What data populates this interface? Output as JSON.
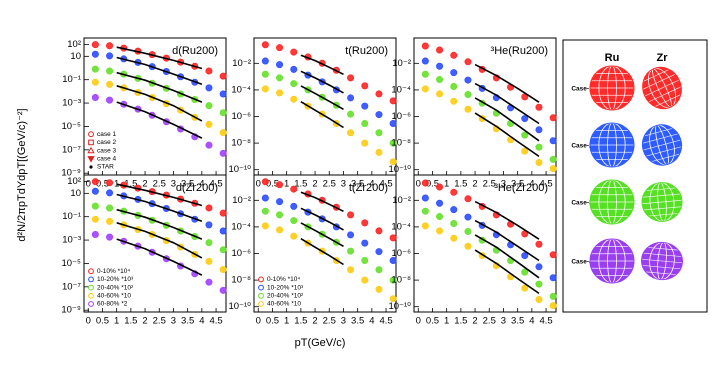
{
  "axes": {
    "x_label": "pT(GeV/c)",
    "y_label": "d²N/2πpTdYdpT[(GeV/c)⁻²]"
  },
  "chart_data": [
    {
      "type": "scatter",
      "title": "d(Ru200)",
      "log_y": true,
      "xlim": [
        -0.15,
        4.85
      ],
      "xticks": [
        0,
        0.5,
        1,
        1.5,
        2,
        2.5,
        3,
        3.5,
        4,
        4.5
      ],
      "ylim": [
        7e-10,
        370
      ],
      "yticks": [
        {
          "value": 100,
          "label": "10²"
        },
        10,
        {
          "value": 0.1,
          "label": "10⁻¹"
        },
        {
          "value": 0.001,
          "label": "10⁻³"
        },
        {
          "value": 1e-05,
          "label": "10⁻⁵"
        },
        {
          "value": 1e-07,
          "label": "10⁻⁷"
        },
        {
          "value": 1e-09,
          "label": "10⁻⁹"
        }
      ],
      "marker_legend": [
        "case 1",
        "case 2",
        "case 3",
        "case 4",
        "STAR"
      ],
      "x": [
        0.25,
        0.75,
        1.25,
        1.75,
        2.25,
        2.75,
        3.25,
        3.75,
        4.25,
        4.75
      ],
      "series": [
        {
          "color": "#ff2222",
          "values": [
            100,
            80,
            50,
            28,
            14,
            7,
            3.2,
            1.4,
            0.56,
            0.2
          ]
        },
        {
          "color": "#2b4dff",
          "values": [
            15,
            11,
            6,
            3,
            1.3,
            0.5,
            0.18,
            0.06,
            0.02,
            0.006
          ]
        },
        {
          "color": "#66e02a",
          "values": [
            0.8,
            0.55,
            0.3,
            0.13,
            0.05,
            0.018,
            0.006,
            0.002,
            0.0006,
            0.00015
          ]
        },
        {
          "color": "#ffcc11",
          "values": [
            0.06,
            0.04,
            0.02,
            0.008,
            0.003,
            0.0009,
            0.00025,
            6e-05,
            1.5e-05,
            3e-06
          ]
        },
        {
          "color": "#a040ff",
          "values": [
            0.003,
            0.0018,
            0.0008,
            0.0003,
            9e-05,
            2.5e-05,
            6e-06,
            1.3e-06,
            2.5e-07,
            5e-08
          ]
        }
      ],
      "reference": [
        {
          "x": [
            1,
            2,
            3,
            4
          ],
          "values": [
            60,
            18,
            4.5,
            0.9
          ]
        },
        {
          "x": [
            1,
            2,
            3,
            4
          ],
          "values": [
            8,
            2,
            0.3,
            0.04
          ]
        },
        {
          "x": [
            1,
            2,
            3,
            4
          ],
          "values": [
            0.4,
            0.09,
            0.012,
            0.0012
          ]
        },
        {
          "x": [
            1,
            2,
            3,
            4
          ],
          "values": [
            0.03,
            0.0055,
            0.0006,
            3e-05
          ]
        },
        {
          "x": [
            1,
            2,
            3,
            4
          ],
          "values": [
            0.0012,
            0.00018,
            1.5e-05,
            1e-06
          ]
        }
      ]
    },
    {
      "type": "scatter",
      "title": "t(Ru200)",
      "log_y": true,
      "xlim": [
        -0.15,
        4.85
      ],
      "xticks": [
        0,
        0.5,
        1,
        1.5,
        2,
        2.5,
        3,
        3.5,
        4,
        4.5
      ],
      "ylim": [
        4e-11,
        0.8
      ],
      "yticks": [
        {
          "value": 0.01,
          "label": "10⁻²"
        },
        {
          "value": 0.0001,
          "label": "10⁻⁴"
        },
        {
          "value": 1e-06,
          "label": "10⁻⁶"
        },
        {
          "value": 1e-08,
          "label": "10⁻⁸"
        },
        {
          "value": 1e-10,
          "label": "10⁻¹⁰"
        }
      ],
      "x": [
        0.25,
        0.75,
        1.25,
        1.75,
        2.25,
        2.75,
        3.25,
        3.75,
        4.25,
        4.75
      ],
      "series": [
        {
          "color": "#ff2222",
          "values": [
            0.25,
            0.15,
            0.07,
            0.03,
            0.01,
            0.003,
            0.0008,
            0.0002,
            5e-05,
            1.5e-05
          ]
        },
        {
          "color": "#2b4dff",
          "values": [
            0.015,
            0.008,
            0.0035,
            0.0013,
            0.0004,
            0.0001,
            2.5e-05,
            6e-06,
            1.4e-06,
            3e-07
          ]
        },
        {
          "color": "#66e02a",
          "values": [
            0.0015,
            0.0008,
            0.0003,
            0.0001,
            2.8e-05,
            7e-06,
            1.5e-06,
            3e-07,
            6e-08,
            1e-08
          ]
        },
        {
          "color": "#ffcc11",
          "values": [
            0.00012,
            6e-05,
            2e-05,
            6e-06,
            1.5e-06,
            3e-07,
            6e-08,
            1e-08,
            2e-09,
            4e-10
          ]
        }
      ],
      "reference": [
        {
          "x": [
            1.5,
            2,
            2.5,
            3
          ],
          "values": [
            0.04,
            0.016,
            0.005,
            0.0015
          ]
        },
        {
          "x": [
            1.5,
            2,
            2.5,
            3
          ],
          "values": [
            0.0025,
            0.0008,
            0.00023,
            6e-05
          ]
        },
        {
          "x": [
            1.5,
            2,
            2.5,
            3
          ],
          "values": [
            0.0002,
            5.5e-05,
            1.4e-05,
            3.5e-06
          ]
        },
        {
          "x": [
            1.5,
            2,
            2.5,
            3
          ],
          "values": [
            1.3e-05,
            3e-06,
            7e-07,
            1.5e-07
          ]
        }
      ]
    },
    {
      "type": "scatter",
      "title": "³He(Ru200)",
      "log_y": true,
      "xlim": [
        -0.15,
        4.85
      ],
      "xticks": [
        0,
        0.5,
        1,
        1.5,
        2,
        2.5,
        3,
        3.5,
        4,
        4.5
      ],
      "ylim": [
        4e-11,
        0.8
      ],
      "yticks": [
        {
          "value": 0.01,
          "label": "10⁻²"
        },
        {
          "value": 0.0001,
          "label": "10⁻⁴"
        },
        {
          "value": 1e-06,
          "label": "10⁻⁶"
        },
        {
          "value": 1e-08,
          "label": "10⁻⁸"
        },
        {
          "value": 1e-10,
          "label": "10⁻¹⁰"
        }
      ],
      "x": [
        0.25,
        0.75,
        1.25,
        1.75,
        2.25,
        2.75,
        3.25,
        3.75,
        4.25,
        4.75
      ],
      "series": [
        {
          "color": "#ff2222",
          "values": [
            0.2,
            0.1,
            0.04,
            0.013,
            0.0035,
            0.0008,
            0.00016,
            3e-05,
            5e-06,
            8e-07
          ]
        },
        {
          "color": "#2b4dff",
          "values": [
            0.015,
            0.006,
            0.002,
            0.00055,
            0.00013,
            2.6e-05,
            4.5e-06,
            7e-07,
            1e-07,
            1.5e-08
          ]
        },
        {
          "color": "#66e02a",
          "values": [
            0.0015,
            0.0006,
            0.00018,
            4.5e-05,
            1e-05,
            1.8e-06,
            3e-07,
            4e-08,
            5e-09,
            6e-10
          ]
        },
        {
          "color": "#ffcc11",
          "values": [
            0.00012,
            5e-05,
            1.4e-05,
            3.5e-06,
            7e-07,
            1.2e-07,
            1.8e-08,
            2.5e-09,
            3.5e-10,
            1.2e-10
          ]
        }
      ],
      "reference": [
        {
          "x": [
            2,
            2.75,
            3.5,
            4.25
          ],
          "values": [
            0.008,
            0.0012,
            0.00013,
            1.2e-05
          ]
        },
        {
          "x": [
            2,
            2.75,
            3.5,
            4.25
          ],
          "values": [
            0.0003,
            4e-05,
            3.5e-06,
            3e-07
          ]
        },
        {
          "x": [
            2,
            2.75,
            3.5,
            4.25
          ],
          "values": [
            2.5e-05,
            3e-06,
            2.2e-07,
            1.5e-08
          ]
        },
        {
          "x": [
            2,
            2.75,
            3.5,
            4.25
          ],
          "values": [
            1.8e-06,
            1.8e-07,
            1.3e-08,
            1e-09
          ]
        }
      ]
    },
    {
      "type": "scatter",
      "title": "d(Zr200)",
      "log_y": true,
      "xlim": [
        -0.15,
        4.85
      ],
      "xticks": [
        0,
        0.5,
        1,
        1.5,
        2,
        2.5,
        3,
        3.5,
        4,
        4.5
      ],
      "ylim": [
        7e-10,
        370
      ],
      "yticks": [
        {
          "value": 100,
          "label": "10²"
        },
        10,
        {
          "value": 0.1,
          "label": "10⁻¹"
        },
        {
          "value": 0.001,
          "label": "10⁻³"
        },
        {
          "value": 1e-05,
          "label": "10⁻⁵"
        },
        {
          "value": 1e-07,
          "label": "10⁻⁷"
        },
        {
          "value": 1e-09,
          "label": "10⁻⁹"
        }
      ],
      "x": [
        0.25,
        0.75,
        1.25,
        1.75,
        2.25,
        2.75,
        3.25,
        3.75,
        4.25,
        4.75
      ],
      "series": [
        {
          "name": "0-10% *10⁴",
          "color": "#ff2222",
          "values": [
            100,
            80,
            50,
            28,
            14,
            7,
            3.2,
            1.4,
            0.56,
            0.2
          ]
        },
        {
          "name": "10-20% *10³",
          "color": "#2b4dff",
          "values": [
            15,
            11,
            6,
            3,
            1.3,
            0.5,
            0.18,
            0.06,
            0.02,
            0.006
          ]
        },
        {
          "name": "20-40% *10²",
          "color": "#66e02a",
          "values": [
            0.8,
            0.55,
            0.3,
            0.13,
            0.05,
            0.018,
            0.006,
            0.002,
            0.0006,
            0.00015
          ]
        },
        {
          "name": "40-60% *10",
          "color": "#ffcc11",
          "values": [
            0.06,
            0.04,
            0.02,
            0.008,
            0.003,
            0.0009,
            0.00025,
            6e-05,
            1.5e-05,
            3e-06
          ]
        },
        {
          "name": "60-80% *2",
          "color": "#a040ff",
          "values": [
            0.003,
            0.0018,
            0.0008,
            0.0003,
            9e-05,
            2.5e-05,
            6e-06,
            1.3e-06,
            2.5e-07,
            5e-08
          ]
        }
      ],
      "reference": [
        {
          "x": [
            1,
            2,
            3,
            4
          ],
          "values": [
            60,
            18,
            4.5,
            0.9
          ]
        },
        {
          "x": [
            1,
            2,
            3,
            4
          ],
          "values": [
            8,
            2,
            0.3,
            0.04
          ]
        },
        {
          "x": [
            1,
            2,
            3,
            4
          ],
          "values": [
            0.4,
            0.09,
            0.012,
            0.0012
          ]
        },
        {
          "x": [
            1,
            2,
            3,
            4
          ],
          "values": [
            0.03,
            0.0055,
            0.0006,
            3e-05
          ]
        },
        {
          "x": [
            1,
            2,
            3,
            4
          ],
          "values": [
            0.0012,
            0.00018,
            1.5e-05,
            1e-06
          ]
        }
      ]
    },
    {
      "type": "scatter",
      "title": "t(Zr200)",
      "log_y": true,
      "xlim": [
        -0.15,
        4.85
      ],
      "xticks": [
        0,
        0.5,
        1,
        1.5,
        2,
        2.5,
        3,
        3.5,
        4,
        4.5
      ],
      "ylim": [
        4e-11,
        0.8
      ],
      "yticks": [
        {
          "value": 0.01,
          "label": "10⁻²"
        },
        {
          "value": 0.0001,
          "label": "10⁻⁴"
        },
        {
          "value": 1e-06,
          "label": "10⁻⁶"
        },
        {
          "value": 1e-08,
          "label": "10⁻⁸"
        },
        {
          "value": 1e-10,
          "label": "10⁻¹⁰"
        }
      ],
      "x": [
        0.25,
        0.75,
        1.25,
        1.75,
        2.25,
        2.75,
        3.25,
        3.75,
        4.25,
        4.75
      ],
      "series": [
        {
          "name": "0-10% *10⁴",
          "color": "#ff2222",
          "values": [
            0.25,
            0.15,
            0.07,
            0.03,
            0.01,
            0.003,
            0.0008,
            0.0002,
            5e-05,
            1.5e-05
          ]
        },
        {
          "name": "10-20% *10³",
          "color": "#2b4dff",
          "values": [
            0.015,
            0.008,
            0.0035,
            0.0013,
            0.0004,
            0.0001,
            2.5e-05,
            6e-06,
            1.4e-06,
            3e-07
          ]
        },
        {
          "name": "20-40% *10²",
          "color": "#66e02a",
          "values": [
            0.0015,
            0.0008,
            0.0003,
            0.0001,
            2.8e-05,
            7e-06,
            1.5e-06,
            3e-07,
            6e-08,
            1e-08
          ]
        },
        {
          "name": "40-60% *10",
          "color": "#ffcc11",
          "values": [
            0.00012,
            6e-05,
            2e-05,
            6e-06,
            1.5e-06,
            3e-07,
            6e-08,
            1e-08,
            2e-09,
            4e-10
          ]
        }
      ],
      "reference": [
        {
          "x": [
            1.5,
            2,
            2.5,
            3
          ],
          "values": [
            0.04,
            0.016,
            0.005,
            0.0015
          ]
        },
        {
          "x": [
            1.5,
            2,
            2.5,
            3
          ],
          "values": [
            0.0025,
            0.0008,
            0.00023,
            6e-05
          ]
        },
        {
          "x": [
            1.5,
            2,
            2.5,
            3
          ],
          "values": [
            0.0002,
            5.5e-05,
            1.4e-05,
            3.5e-06
          ]
        },
        {
          "x": [
            1.5,
            2,
            2.5,
            3
          ],
          "values": [
            1.3e-05,
            3e-06,
            7e-07,
            1.5e-07
          ]
        }
      ]
    },
    {
      "type": "scatter",
      "title": "³He(Zr200)",
      "log_y": true,
      "xlim": [
        -0.15,
        4.85
      ],
      "xticks": [
        0,
        0.5,
        1,
        1.5,
        2,
        2.5,
        3,
        3.5,
        4,
        4.5
      ],
      "ylim": [
        4e-11,
        0.8
      ],
      "yticks": [
        {
          "value": 0.01,
          "label": "10⁻²"
        },
        {
          "value": 0.0001,
          "label": "10⁻⁴"
        },
        {
          "value": 1e-06,
          "label": "10⁻⁶"
        },
        {
          "value": 1e-08,
          "label": "10⁻⁸"
        },
        {
          "value": 1e-10,
          "label": "10⁻¹⁰"
        }
      ],
      "x": [
        0.25,
        0.75,
        1.25,
        1.75,
        2.25,
        2.75,
        3.25,
        3.75,
        4.25,
        4.75
      ],
      "series": [
        {
          "color": "#ff2222",
          "values": [
            0.2,
            0.1,
            0.04,
            0.013,
            0.0035,
            0.0008,
            0.00016,
            3e-05,
            5e-06,
            8e-07
          ]
        },
        {
          "color": "#2b4dff",
          "values": [
            0.015,
            0.006,
            0.002,
            0.00055,
            0.00013,
            2.6e-05,
            4.5e-06,
            7e-07,
            1e-07,
            1.5e-08
          ]
        },
        {
          "color": "#66e02a",
          "values": [
            0.0015,
            0.0006,
            0.00018,
            4.5e-05,
            1e-05,
            1.8e-06,
            3e-07,
            4e-08,
            5e-09,
            6e-10
          ]
        },
        {
          "color": "#ffcc11",
          "values": [
            0.00012,
            5e-05,
            1.4e-05,
            3.5e-06,
            7e-07,
            1.2e-07,
            1.8e-08,
            2.5e-09,
            3.5e-10,
            1.2e-10
          ]
        }
      ],
      "reference": [
        {
          "x": [
            2,
            2.75,
            3.5,
            4.25
          ],
          "values": [
            0.008,
            0.0012,
            0.00013,
            1.2e-05
          ]
        },
        {
          "x": [
            2,
            2.75,
            3.5,
            4.25
          ],
          "values": [
            0.0003,
            4e-05,
            3.5e-06,
            3e-07
          ]
        },
        {
          "x": [
            2,
            2.75,
            3.5,
            4.25
          ],
          "values": [
            2.5e-05,
            3e-06,
            2.2e-07,
            1.5e-08
          ]
        },
        {
          "x": [
            2,
            2.75,
            3.5,
            4.25
          ],
          "values": [
            1.8e-06,
            1.8e-07,
            1.3e-08,
            1e-09
          ]
        }
      ]
    }
  ],
  "shapes_panel": {
    "columns": [
      "Ru",
      "Zr"
    ],
    "rows": [
      "Case-1",
      "Case-2",
      "Case-3",
      "Case-4"
    ]
  }
}
